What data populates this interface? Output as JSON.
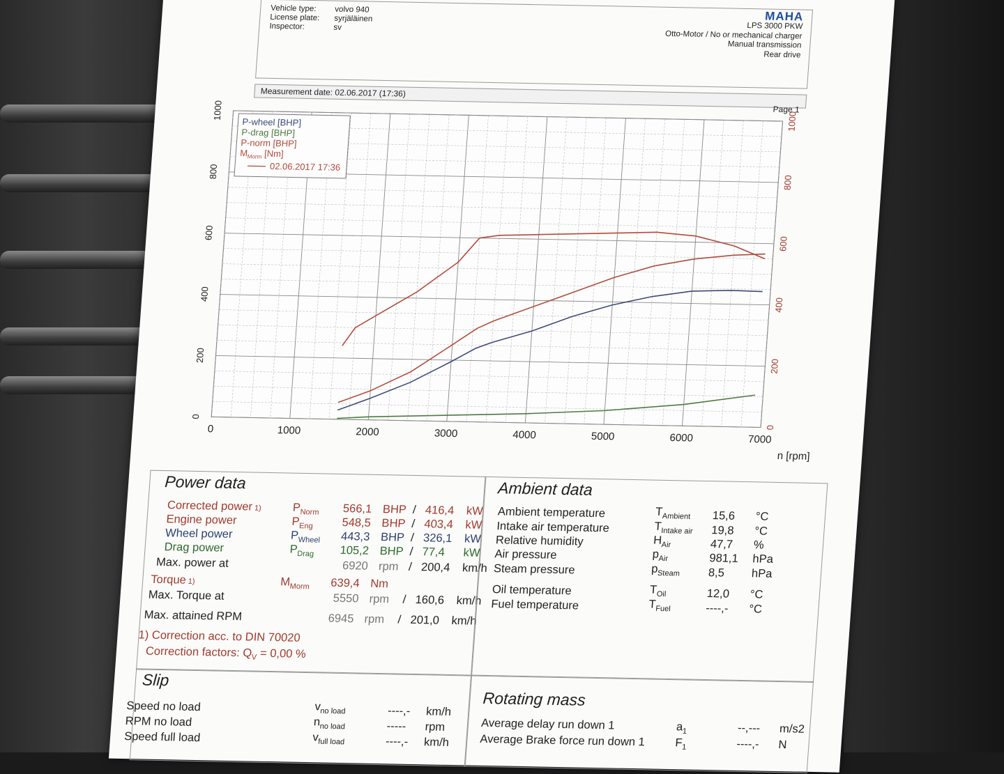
{
  "header": {
    "vehicle_type_label": "Vehicle type:",
    "vehicle_type": "volvo 940",
    "license_plate_label": "License plate:",
    "license_plate": "syrjäläinen",
    "inspector_label": "Inspector:",
    "inspector": "sv",
    "brand": "MAHA",
    "model": "LPS 3000 PKW",
    "engine": "Otto-Motor / No or mechanical charger",
    "transmission": "Manual transmission",
    "drive": "Rear drive"
  },
  "measurement": {
    "date_label": "Measurement date: 02.06.2017 (17:36)",
    "page": "Page 1"
  },
  "colors": {
    "p_wheel": "#3c4a78",
    "p_drag": "#4d7a3e",
    "p_norm": "#b24a3a",
    "m_norm": "#b24a3a"
  },
  "chart_data": {
    "type": "line",
    "xlabel": "n [rpm]",
    "xlim": [
      0,
      7000
    ],
    "x_ticks": [
      "0",
      "1000",
      "2000",
      "3000",
      "4000",
      "5000",
      "6000",
      "7000"
    ],
    "y_left_ticks": [
      "0",
      "200",
      "400",
      "600",
      "800",
      "1000"
    ],
    "y_right_ticks": [
      "0",
      "200",
      "400",
      "600",
      "800",
      "1000"
    ],
    "ylim": [
      0,
      1000
    ],
    "grid": true,
    "legend_position": "top-left",
    "legend": [
      "P-wheel [BHP]",
      "P-drag [BHP]",
      "P-norm [BHP]",
      "M",
      "[Nm]",
      "02.06.2017 17:36"
    ],
    "legend_sub": "Morm",
    "series": [
      {
        "name": "P-norm [BHP]",
        "color": "#b24a3a",
        "x": [
          1600,
          2000,
          2500,
          3000,
          3300,
          3500,
          4000,
          4500,
          5000,
          5500,
          6000,
          6500,
          6900
        ],
        "y": [
          55,
          95,
          160,
          250,
          305,
          330,
          380,
          430,
          480,
          520,
          545,
          560,
          566
        ]
      },
      {
        "name": "P-wheel [BHP]",
        "color": "#3c4a78",
        "x": [
          1600,
          2000,
          2500,
          3000,
          3300,
          3500,
          4000,
          4500,
          5000,
          5500,
          6000,
          6500,
          6900
        ],
        "y": [
          30,
          70,
          125,
          195,
          240,
          260,
          300,
          350,
          390,
          420,
          440,
          445,
          443
        ]
      },
      {
        "name": "P-drag [BHP]",
        "color": "#4d7a3e",
        "x": [
          1600,
          2000,
          3000,
          4000,
          5000,
          6000,
          6900
        ],
        "y": [
          3,
          10,
          20,
          30,
          45,
          70,
          105
        ]
      },
      {
        "name": "M [Nm]",
        "color": "#b24a3a",
        "x": [
          1600,
          1750,
          2000,
          2500,
          3000,
          3250,
          3500,
          4000,
          4500,
          5000,
          5500,
          6000,
          6500,
          6900
        ],
        "y": [
          240,
          300,
          340,
          420,
          520,
          600,
          610,
          615,
          620,
          625,
          630,
          620,
          590,
          550
        ]
      }
    ]
  },
  "power_data": {
    "title": "Power data",
    "rows": [
      {
        "label": "Corrected power",
        "note": "1)",
        "sym": "P",
        "sub": "Norm",
        "bhp": "566,1",
        "bhp_u": "BHP",
        "sep": "/",
        "kw": "416,4",
        "kw_u": "kW"
      },
      {
        "label": "Engine power",
        "note": "",
        "sym": "P",
        "sub": "Eng",
        "bhp": "548,5",
        "bhp_u": "BHP",
        "sep": "/",
        "kw": "403,4",
        "kw_u": "kW"
      },
      {
        "label": "Wheel power",
        "note": "",
        "sym": "P",
        "sub": "Wheel",
        "bhp": "443,3",
        "bhp_u": "BHP",
        "sep": "/",
        "kw": "326,1",
        "kw_u": "kW"
      },
      {
        "label": "Drag power",
        "note": "",
        "sym": "P",
        "sub": "Drag",
        "bhp": "105,2",
        "bhp_u": "BHP",
        "sep": "/",
        "kw": "77,4",
        "kw_u": "kW"
      }
    ],
    "max_power": {
      "label": "Max. power at",
      "rpm": "6920",
      "rpm_u": "rpm",
      "sep": "/",
      "kmh": "200,4",
      "kmh_u": "km/h"
    },
    "torque": {
      "label": "Torque",
      "note": "1)",
      "sym": "M",
      "sub": "Morm",
      "value": "639,4",
      "unit": "Nm"
    },
    "max_torque": {
      "label": "Max. Torque at",
      "rpm": "5550",
      "rpm_u": "rpm",
      "sep": "/",
      "kmh": "160,6",
      "kmh_u": "km/h"
    },
    "max_rpm": {
      "label": "Max. attained RPM",
      "rpm": "6945",
      "rpm_u": "rpm",
      "sep": "/",
      "kmh": "201,0",
      "kmh_u": "km/h"
    },
    "footnote1": "1) Correction acc. to DIN 70020",
    "footnote2_pre": "Correction factors: Q",
    "footnote2_sub": "V",
    "footnote2_post": " =   0,00 %"
  },
  "ambient_data": {
    "title": "Ambient data",
    "rows": [
      {
        "label": "Ambient temperature",
        "sym": "T",
        "sub": "Ambient",
        "value": "15,6",
        "unit": "°C"
      },
      {
        "label": "Intake air temperature",
        "sym": "T",
        "sub": "Intake air",
        "value": "19,8",
        "unit": "°C"
      },
      {
        "label": "Relative humidity",
        "sym": "H",
        "sub": "Air",
        "value": "47,7",
        "unit": "%"
      },
      {
        "label": "Air pressure",
        "sym": "p",
        "sub": "Air",
        "value": "981,1",
        "unit": "hPa"
      },
      {
        "label": "Steam pressure",
        "sym": "p",
        "sub": "Steam",
        "value": "8,5",
        "unit": "hPa"
      },
      {
        "label": "Oil temperature",
        "sym": "T",
        "sub": "Oil",
        "value": "12,0",
        "unit": "°C"
      },
      {
        "label": "Fuel temperature",
        "sym": "T",
        "sub": "Fuel",
        "value": "----,-",
        "unit": "°C"
      }
    ]
  },
  "slip": {
    "title": "Slip",
    "rows": [
      {
        "label": "Speed no load",
        "sym": "v",
        "sub": "no load",
        "value": "----,-",
        "unit": "km/h"
      },
      {
        "label": "RPM no load",
        "sym": "n",
        "sub": "no load",
        "value": "-----",
        "unit": "rpm"
      },
      {
        "label": "Speed full load",
        "sym": "v",
        "sub": "full load",
        "value": "----,-",
        "unit": "km/h"
      }
    ]
  },
  "rotating_mass": {
    "title": "Rotating mass",
    "rows": [
      {
        "label": "Average delay run down 1",
        "sym": "a",
        "sub": "1",
        "value": "--,---",
        "unit": "m/s2"
      },
      {
        "label": "Average Brake force run down 1",
        "sym": "F",
        "sub": "1",
        "value": "----,-",
        "unit": "N"
      }
    ]
  }
}
